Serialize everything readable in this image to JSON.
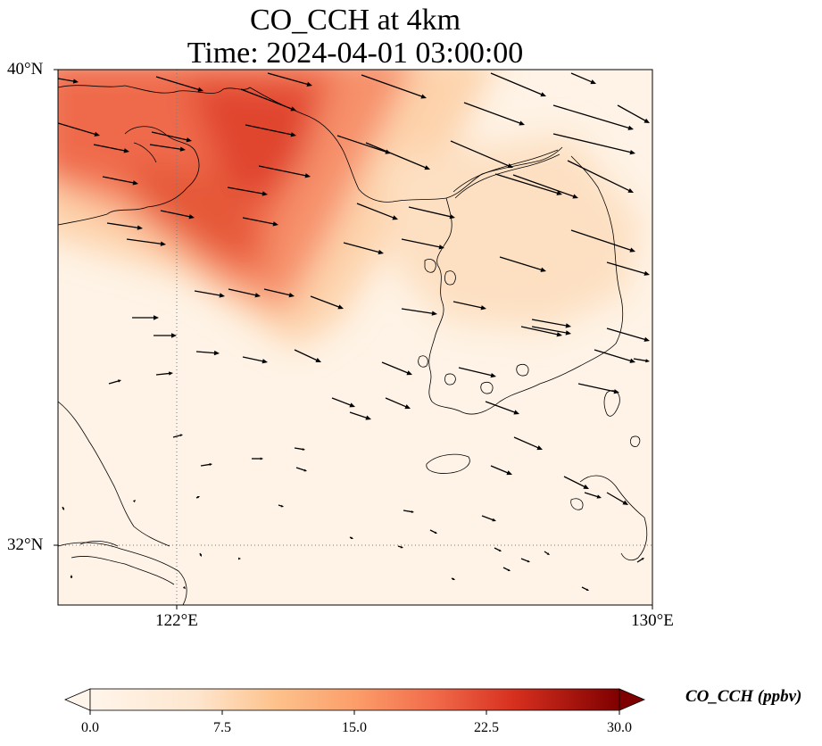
{
  "title": {
    "line1": "CO_CCH at 4km",
    "line2": "Time: 2024-04-01 03:00:00"
  },
  "map": {
    "lat_ticks": [
      "40°N",
      "32°N"
    ],
    "lon_ticks": [
      "122°E",
      "130°E"
    ],
    "extent": {
      "lon_min": 120,
      "lon_max": 130,
      "lat_min": 31,
      "lat_max": 40
    },
    "gridlines": "dotted",
    "field_description": "CO concentration shaded field with wind vectors",
    "high_concentration_band": "Bohai region to west of Korea, running northwest to southeast"
  },
  "colorbar": {
    "label": "CO_CCH (ppbv)",
    "ticks": [
      "0.0",
      "7.5",
      "15.0",
      "22.5",
      "30.0"
    ],
    "range": [
      0,
      30
    ],
    "colormap": [
      "#fff5eb",
      "#fdd8b0",
      "#fdae6b",
      "#f16913",
      "#d94801",
      "#8c2d04",
      "#7f0000"
    ],
    "extend": "both"
  }
}
